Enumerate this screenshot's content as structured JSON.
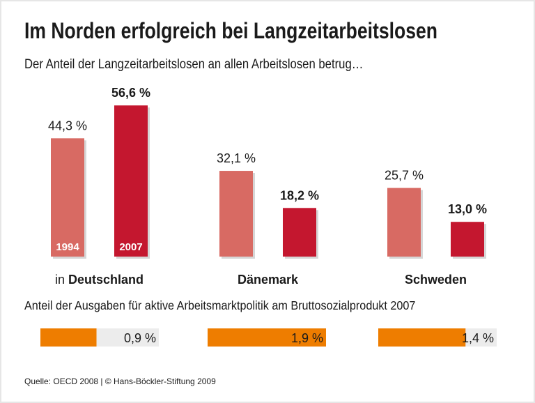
{
  "title": "Im Norden erfolgreich bei Langzeitarbeitslosen",
  "subtitle": "Der Anteil der Langzeitarbeitslosen an allen Arbeitslosen betrug…",
  "source": "Quelle: OECD 2008 | © Hans-Böckler-Stiftung 2009",
  "colors": {
    "y1994": "#d86a63",
    "y2007": "#c4172f",
    "spending": "#ee7d00",
    "track": "#ececec"
  },
  "chart_data": [
    {
      "type": "bar",
      "title": "Der Anteil der Langzeitarbeitslosen an allen Arbeitslosen betrug…",
      "categories": [
        {
          "prefix": "in ",
          "name": "Deutschland"
        },
        {
          "prefix": "",
          "name": "Dänemark"
        },
        {
          "prefix": "",
          "name": "Schweden"
        }
      ],
      "series": [
        {
          "name": "1994",
          "values": [
            44.3,
            32.1,
            25.7
          ],
          "labels": [
            "44,3 %",
            "32,1 %",
            "25,7 %"
          ]
        },
        {
          "name": "2007",
          "values": [
            56.6,
            18.2,
            13.0
          ],
          "labels": [
            "56,6 %",
            "18,2 %",
            "13,0 %"
          ]
        }
      ],
      "unit": "%"
    },
    {
      "type": "bar",
      "orientation": "horizontal",
      "title": "Anteil der Ausgaben für aktive Arbeitsmarktpolitik am Bruttosozialprodukt 2007",
      "categories": [
        "Deutschland",
        "Dänemark",
        "Schweden"
      ],
      "values": [
        0.9,
        1.9,
        1.4
      ],
      "labels": [
        "0,9 %",
        "1,9 %",
        "1,4 %"
      ],
      "xlim": [
        0,
        1.9
      ],
      "unit": "%"
    }
  ]
}
